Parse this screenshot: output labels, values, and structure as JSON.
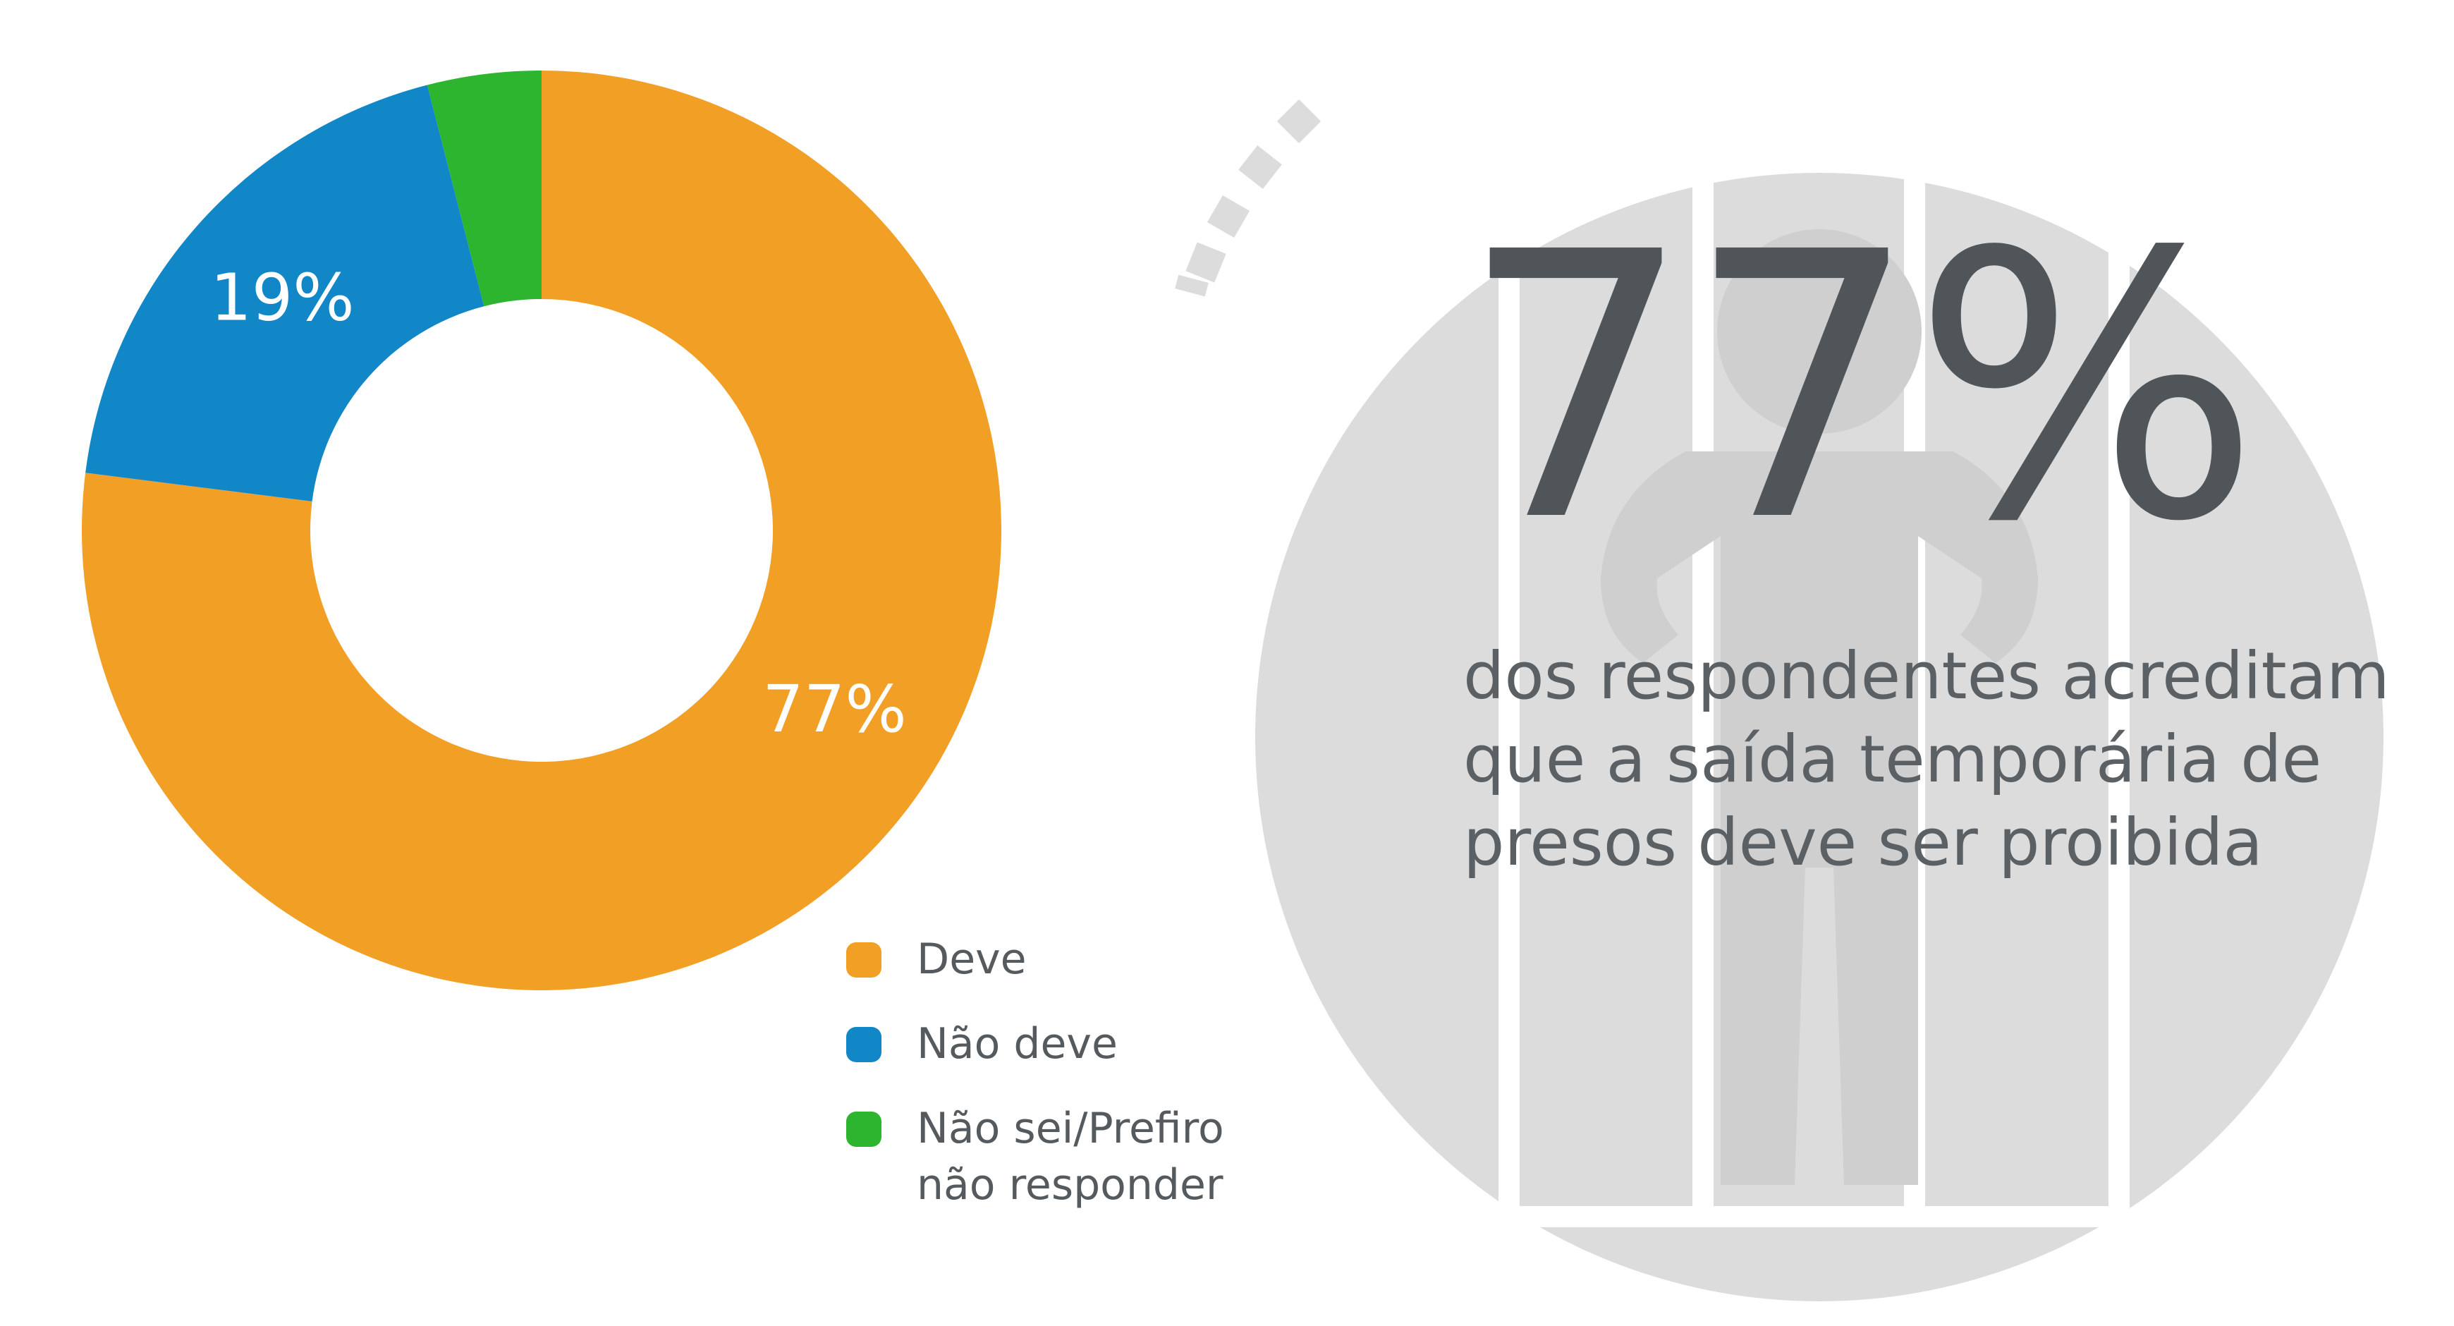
{
  "chart_data": {
    "type": "pie",
    "variant": "donut",
    "categories": [
      "Deve",
      "Não deve",
      "Não sei/Prefiro não responder"
    ],
    "values": [
      77,
      19,
      4
    ],
    "data_labels": [
      "77%",
      "19%",
      ""
    ],
    "colors": [
      "#F29F26",
      "#1287C7",
      "#2DB52F"
    ],
    "legend": [
      {
        "label": "Deve",
        "color": "#F29F26"
      },
      {
        "label": "Não deve",
        "color": "#1287C7"
      },
      {
        "label": "Não sei/Prefiro não responder",
        "color": "#2DB52F"
      }
    ],
    "legend_placement": "bottom-right"
  },
  "highlight": {
    "value": "77%",
    "description": "dos respondentes acreditam que a saída temporária de presos deve ser proibida"
  },
  "colors": {
    "text": "#50555a",
    "illustration": "#dcdcdc",
    "background": "#ffffff"
  },
  "icons": {
    "illustration": "prisoner-behind-bars-icon"
  }
}
